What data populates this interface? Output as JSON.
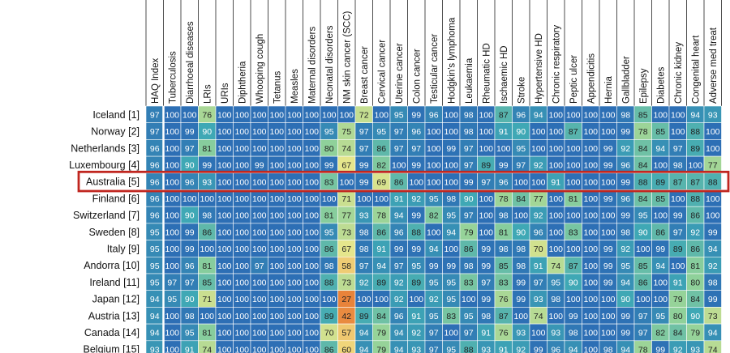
{
  "chart_data": {
    "type": "heatmap",
    "columns": [
      "HAQ Index",
      "Tuberculosis",
      "Diarrhoeal diseases",
      "LRIs",
      "URIs",
      "Diphtheria",
      "Whooping cough",
      "Tetanus",
      "Measles",
      "Maternal disorders",
      "Neonatal disorders",
      "NM skin cancer (SCC)",
      "Breast cancer",
      "Cervical cancer",
      "Uterine cancer",
      "Colon cancer",
      "Testicular cancer",
      "Hodgkin's lymphoma",
      "Leukaemia",
      "Rheumatic HD",
      "Ischaemic HD",
      "Stroke",
      "Hypertensive HD",
      "Chronic respiratory",
      "Peptic ulcer",
      "Appendicitis",
      "Hernia",
      "Gallbladder",
      "Epilepsy",
      "Diabetes",
      "Chronic kidney",
      "Congenital heart",
      "Adverse med treat"
    ],
    "rows": [
      "Iceland [1]",
      "Norway [2]",
      "Netherlands [3]",
      "Luxembourg [4]",
      "Australia [5]",
      "Finland [6]",
      "Switzerland [7]",
      "Sweden [8]",
      "Italy [9]",
      "Andorra [10]",
      "Ireland [11]",
      "Japan [12]",
      "Austria [13]",
      "Canada [14]",
      "Belgium [15]"
    ],
    "values": [
      [
        97,
        100,
        100,
        76,
        100,
        100,
        100,
        100,
        100,
        100,
        100,
        100,
        72,
        100,
        95,
        99,
        96,
        100,
        98,
        100,
        87,
        96,
        94,
        100,
        100,
        100,
        100,
        98,
        85,
        100,
        100,
        94,
        93
      ],
      [
        97,
        100,
        99,
        90,
        100,
        100,
        100,
        100,
        100,
        100,
        95,
        75,
        97,
        95,
        97,
        96,
        100,
        100,
        98,
        100,
        91,
        90,
        100,
        100,
        87,
        100,
        100,
        99,
        78,
        85,
        100,
        88,
        100
      ],
      [
        96,
        100,
        97,
        81,
        100,
        100,
        100,
        100,
        100,
        100,
        80,
        74,
        97,
        86,
        97,
        97,
        100,
        99,
        97,
        100,
        100,
        95,
        100,
        100,
        100,
        100,
        99,
        92,
        84,
        94,
        97,
        89,
        100
      ],
      [
        96,
        100,
        90,
        99,
        100,
        100,
        99,
        100,
        100,
        100,
        99,
        67,
        99,
        82,
        100,
        99,
        100,
        100,
        97,
        89,
        99,
        97,
        92,
        100,
        100,
        100,
        99,
        96,
        84,
        100,
        98,
        100,
        77
      ],
      [
        96,
        100,
        96,
        93,
        100,
        100,
        100,
        100,
        100,
        100,
        83,
        100,
        99,
        69,
        86,
        100,
        100,
        100,
        99,
        97,
        96,
        100,
        100,
        91,
        100,
        100,
        100,
        99,
        88,
        89,
        87,
        87,
        88
      ],
      [
        96,
        100,
        100,
        100,
        100,
        100,
        100,
        100,
        100,
        100,
        100,
        71,
        100,
        100,
        91,
        92,
        95,
        98,
        90,
        100,
        78,
        84,
        77,
        100,
        81,
        100,
        99,
        96,
        84,
        85,
        100,
        88,
        100
      ],
      [
        96,
        100,
        90,
        98,
        100,
        100,
        100,
        100,
        100,
        100,
        81,
        77,
        93,
        78,
        94,
        99,
        82,
        95,
        97,
        100,
        98,
        100,
        92,
        100,
        100,
        100,
        100,
        99,
        95,
        100,
        99,
        86,
        100
      ],
      [
        95,
        100,
        99,
        86,
        100,
        100,
        100,
        100,
        100,
        100,
        95,
        73,
        98,
        86,
        96,
        88,
        100,
        94,
        79,
        100,
        81,
        90,
        96,
        100,
        83,
        100,
        100,
        98,
        90,
        86,
        97,
        92,
        99
      ],
      [
        95,
        100,
        99,
        100,
        100,
        100,
        100,
        100,
        100,
        100,
        86,
        67,
        98,
        91,
        99,
        99,
        94,
        100,
        86,
        99,
        98,
        98,
        70,
        100,
        100,
        100,
        99,
        92,
        100,
        99,
        89,
        86,
        94
      ],
      [
        95,
        100,
        96,
        81,
        100,
        100,
        97,
        100,
        100,
        100,
        98,
        58,
        97,
        94,
        97,
        95,
        99,
        99,
        98,
        99,
        85,
        98,
        91,
        74,
        87,
        100,
        99,
        95,
        85,
        94,
        100,
        81,
        92
      ],
      [
        95,
        97,
        97,
        85,
        100,
        100,
        100,
        100,
        100,
        100,
        88,
        73,
        92,
        89,
        92,
        89,
        95,
        95,
        83,
        97,
        83,
        99,
        97,
        95,
        90,
        100,
        99,
        94,
        86,
        100,
        91,
        80,
        98
      ],
      [
        94,
        95,
        90,
        71,
        100,
        100,
        100,
        100,
        100,
        100,
        100,
        27,
        100,
        100,
        92,
        100,
        92,
        95,
        100,
        99,
        76,
        99,
        93,
        98,
        100,
        100,
        100,
        90,
        100,
        100,
        79,
        84,
        99
      ],
      [
        94,
        100,
        98,
        100,
        100,
        100,
        100,
        100,
        100,
        100,
        89,
        42,
        89,
        84,
        96,
        91,
        95,
        83,
        95,
        98,
        87,
        100,
        74,
        100,
        99,
        100,
        100,
        99,
        97,
        95,
        80,
        90,
        73
      ],
      [
        94,
        100,
        95,
        81,
        100,
        100,
        100,
        100,
        100,
        100,
        70,
        57,
        94,
        79,
        94,
        92,
        97,
        100,
        97,
        91,
        76,
        93,
        100,
        93,
        98,
        100,
        100,
        99,
        97,
        82,
        84,
        79,
        94
      ],
      [
        93,
        100,
        91,
        74,
        100,
        100,
        100,
        100,
        100,
        100,
        86,
        60,
        94,
        79,
        94,
        93,
        97,
        95,
        88,
        93,
        91,
        92,
        99,
        96,
        94,
        100,
        98,
        94,
        78,
        99,
        92,
        93,
        74
      ]
    ],
    "highlight_row": "Australia [5]",
    "highlight_color": "#c0261f",
    "color_scale": {
      "low": "#e8833a",
      "mid_low": "#f2e98a",
      "mid": "#8fd19a",
      "high": "#3fa8b5",
      "top": "#2d6fb5"
    }
  }
}
